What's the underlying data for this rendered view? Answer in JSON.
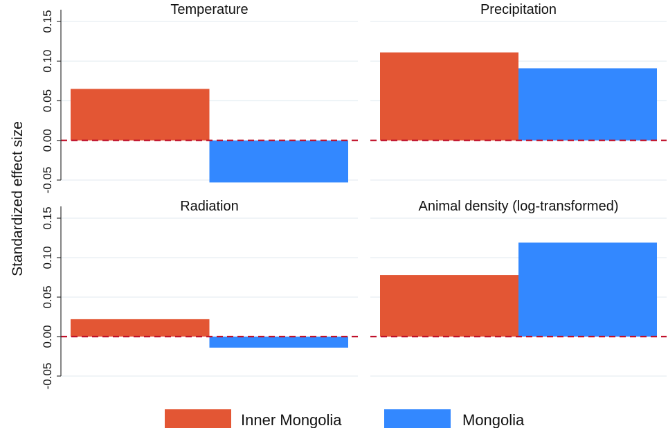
{
  "chart_data": {
    "type": "bar",
    "ylabel": "Standardized effect size",
    "ylim": [
      -0.05,
      0.15
    ],
    "yticks": [
      -0.05,
      0.0,
      0.05,
      0.1,
      0.15
    ],
    "ytick_labels": [
      "-0.05",
      "0.00",
      "0.05",
      "0.10",
      "0.15"
    ],
    "reference_line": {
      "y": 0,
      "style": "dashed",
      "color": "#c0102a"
    },
    "grid": true,
    "legend": {
      "position": "bottom",
      "entries": [
        {
          "name": "Inner Mongolia",
          "color": "#e35634"
        },
        {
          "name": "Mongolia",
          "color": "#3388ff"
        }
      ]
    },
    "panels": [
      {
        "title": "Temperature",
        "series": [
          {
            "name": "Inner Mongolia",
            "value": 0.065
          },
          {
            "name": "Mongolia",
            "value": -0.053
          }
        ]
      },
      {
        "title": "Precipitation",
        "series": [
          {
            "name": "Inner Mongolia",
            "value": 0.111
          },
          {
            "name": "Mongolia",
            "value": 0.091
          }
        ]
      },
      {
        "title": "Radiation",
        "series": [
          {
            "name": "Inner Mongolia",
            "value": 0.022
          },
          {
            "name": "Mongolia",
            "value": -0.014
          }
        ]
      },
      {
        "title": "Animal density (log-transformed)",
        "series": [
          {
            "name": "Inner Mongolia",
            "value": 0.078
          },
          {
            "name": "Mongolia",
            "value": 0.119
          }
        ]
      }
    ]
  }
}
